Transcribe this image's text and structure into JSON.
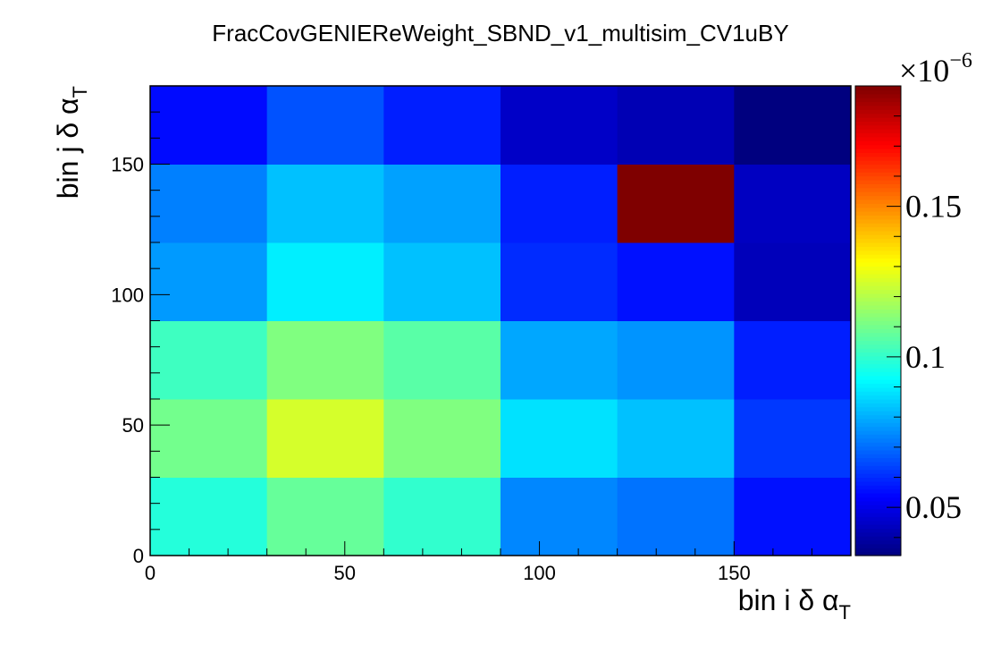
{
  "chart_data": {
    "type": "heatmap",
    "title": "FracCovGENIEReWeight_SBND_v1_multisim_CV1uBY",
    "xlabel": {
      "text": "bin i δ α",
      "sub": "T"
    },
    "ylabel": {
      "text": "bin j δ α",
      "sub": "T"
    },
    "xlim": [
      0,
      180
    ],
    "ylim": [
      0,
      180
    ],
    "x_edges": [
      0,
      30,
      60,
      90,
      120,
      150,
      180
    ],
    "y_edges": [
      0,
      30,
      60,
      90,
      120,
      150,
      180
    ],
    "x_ticks": [
      0,
      50,
      100,
      150
    ],
    "y_ticks": [
      0,
      50,
      100,
      150
    ],
    "x_tick_labels": [
      "0",
      "50",
      "100",
      "150"
    ],
    "y_tick_labels": [
      "0",
      "50",
      "100",
      "150"
    ],
    "values_rows_bottom_to_top": [
      [
        0.098,
        0.108,
        0.1,
        0.074,
        0.071,
        0.056
      ],
      [
        0.11,
        0.125,
        0.112,
        0.088,
        0.083,
        0.062
      ],
      [
        0.102,
        0.112,
        0.106,
        0.079,
        0.076,
        0.058
      ],
      [
        0.077,
        0.09,
        0.083,
        0.06,
        0.056,
        0.043
      ],
      [
        0.073,
        0.083,
        0.078,
        0.058,
        0.19,
        0.044
      ],
      [
        0.055,
        0.066,
        0.058,
        0.045,
        0.042,
        0.034
      ]
    ],
    "zlim": [
      0.034,
      0.19
    ],
    "z_exponent_label": "×10",
    "z_exponent_power": "−6",
    "z_ticks": [
      0.05,
      0.1,
      0.15
    ],
    "z_tick_labels": [
      "0.05",
      "0.1",
      "0.15"
    ],
    "colormap": [
      "#00007f",
      "#0000ff",
      "#0080ff",
      "#00ffff",
      "#80ff80",
      "#ffff00",
      "#ff8000",
      "#ff0000",
      "#7f0000"
    ],
    "grid": false
  }
}
